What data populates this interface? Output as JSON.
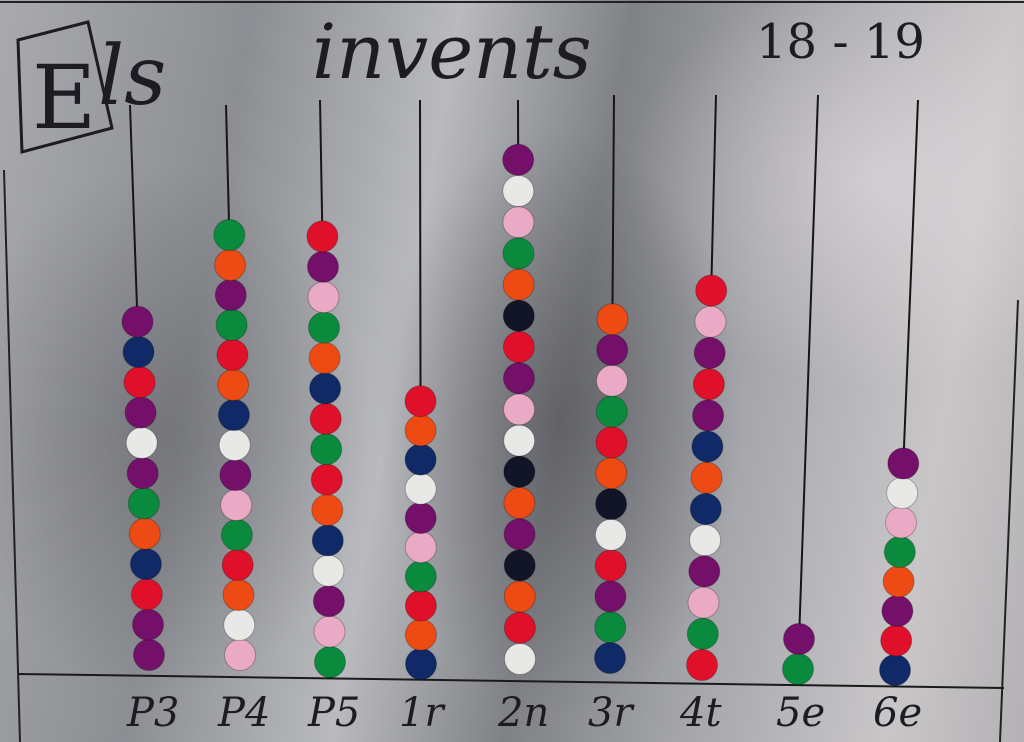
{
  "poster": {
    "title_initial": "E",
    "title_rest": "ls",
    "title_word": "invents",
    "school_year": "18 - 19"
  },
  "colors": {
    "purple": "#74106a",
    "navy": "#0f2a66",
    "red": "#e0102a",
    "white": "#e8e8e6",
    "green": "#0a8a3c",
    "orange": "#ee4a14",
    "pink": "#eaaac6",
    "black": "#121428"
  },
  "columns": [
    {
      "label": "P3",
      "beads": [
        "purple",
        "purple",
        "red",
        "navy",
        "orange",
        "green",
        "purple",
        "white",
        "purple",
        "red",
        "navy",
        "purple"
      ]
    },
    {
      "label": "P4",
      "beads": [
        "pink",
        "white",
        "orange",
        "red",
        "green",
        "pink",
        "purple",
        "white",
        "navy",
        "orange",
        "red",
        "green",
        "purple",
        "orange",
        "green"
      ]
    },
    {
      "label": "P5",
      "beads": [
        "green",
        "pink",
        "purple",
        "white",
        "navy",
        "orange",
        "red",
        "green",
        "red",
        "navy",
        "orange",
        "green",
        "pink",
        "purple",
        "red"
      ]
    },
    {
      "label": "1r",
      "beads": [
        "navy",
        "orange",
        "red",
        "green",
        "pink",
        "purple",
        "white",
        "navy",
        "orange",
        "red"
      ]
    },
    {
      "label": "2n",
      "beads": [
        "white",
        "red",
        "orange",
        "black",
        "purple",
        "orange",
        "black",
        "white",
        "pink",
        "purple",
        "red",
        "black",
        "orange",
        "green",
        "pink",
        "white",
        "purple"
      ]
    },
    {
      "label": "3r",
      "beads": [
        "navy",
        "green",
        "purple",
        "red",
        "white",
        "black",
        "orange",
        "red",
        "green",
        "pink",
        "purple",
        "orange"
      ]
    },
    {
      "label": "4t",
      "beads": [
        "red",
        "green",
        "pink",
        "purple",
        "white",
        "navy",
        "orange",
        "navy",
        "purple",
        "red",
        "purple",
        "pink",
        "red"
      ]
    },
    {
      "label": "5e",
      "beads": [
        "green",
        "purple"
      ]
    },
    {
      "label": "6e",
      "beads": [
        "navy",
        "red",
        "purple",
        "orange",
        "green",
        "pink",
        "white",
        "purple"
      ]
    }
  ]
}
